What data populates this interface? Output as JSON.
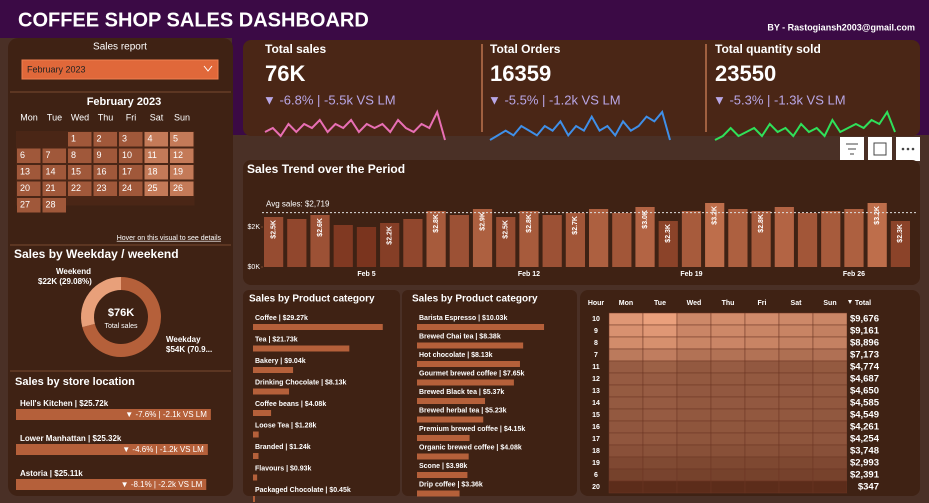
{
  "header": {
    "title": "COFFEE SHOP SALES DASHBOARD",
    "author": "BY - Rastogiansh2003@gmail.com"
  },
  "kpis": [
    {
      "title": "Total sales",
      "value": "76K",
      "change": "▼ -6.8% | -5.5k VS LM",
      "color": "#e86fb4",
      "trend": [
        4,
        5,
        3,
        6,
        4,
        6,
        5,
        7,
        4,
        6,
        5,
        7,
        4,
        6,
        5,
        6,
        4,
        7,
        5,
        4,
        6,
        5,
        9,
        2
      ]
    },
    {
      "title": "Total Orders",
      "value": "16359",
      "change": "▼ -5.5% | -1.2k VS LM",
      "color": "#3f8fe8",
      "trend": [
        3,
        4,
        5,
        4,
        6,
        5,
        4,
        6,
        5,
        7,
        4,
        6,
        5,
        8,
        5,
        6,
        4,
        7,
        5,
        6,
        8,
        7,
        9,
        3
      ]
    },
    {
      "title": "Total quantity sold",
      "value": "23550",
      "change": "▼ -5.3% | -1.3k VS LM",
      "color": "#2fe05a",
      "trend": [
        2,
        3,
        5,
        3,
        4,
        5,
        3,
        6,
        4,
        5,
        3,
        6,
        4,
        5,
        3,
        7,
        4,
        5,
        6,
        5,
        7,
        6,
        9,
        4
      ]
    }
  ],
  "sales_report": {
    "title": "Sales report",
    "dropdown": "February 2023",
    "month": "February 2023",
    "weekdays": [
      "Mon",
      "Tue",
      "Wed",
      "Thu",
      "Fri",
      "Sat",
      "Sun"
    ],
    "days": [
      null,
      null,
      1,
      2,
      3,
      4,
      5,
      6,
      7,
      8,
      9,
      10,
      11,
      12,
      13,
      14,
      15,
      16,
      17,
      18,
      19,
      20,
      21,
      22,
      23,
      24,
      25,
      26,
      27,
      28
    ],
    "hint": "Hover on this visual to see details"
  },
  "weekday": {
    "title": "Sales by Weekday / weekend",
    "center_value": "$76K",
    "center_label": "Total sales",
    "segments": [
      {
        "name": "Weekday",
        "label": "$54K (70.9...",
        "value": 70.92,
        "color": "#b5603a"
      },
      {
        "name": "Weekend",
        "label": "$22K (29.08%)",
        "value": 29.08,
        "color": "#e8a07a"
      }
    ]
  },
  "stores": {
    "title": "Sales by store location",
    "xlim": [
      0,
      26
    ],
    "items": [
      {
        "label": "Hell's Kitchen | $25.72k",
        "value": 25.72,
        "change": "▼ -7.6% | -2.1k VS LM"
      },
      {
        "label": "Lower Manhattan | $25.32k",
        "value": 25.32,
        "change": "▼ -4.6% | -1.2k VS LM"
      },
      {
        "label": "Astoria | $25.11k",
        "value": 25.11,
        "change": "▼ -8.1% | -2.2k VS LM"
      }
    ]
  },
  "trend": {
    "title": "Sales Trend over the Period",
    "avg_label": "Avg sales: $2,719",
    "avg": 2719,
    "ylim": [
      0,
      3600
    ],
    "yticks": [
      {
        "value": 0,
        "label": "$0K"
      },
      {
        "value": 2000,
        "label": "$2K"
      }
    ],
    "categories": [
      null,
      null,
      null,
      null,
      "Feb 5",
      null,
      null,
      null,
      null,
      null,
      null,
      "Feb 12",
      null,
      null,
      null,
      null,
      null,
      null,
      "Feb 19",
      null,
      null,
      null,
      null,
      null,
      null,
      "Feb 26",
      null,
      null
    ],
    "values": [
      2500,
      2400,
      2600,
      2100,
      2000,
      2200,
      2400,
      2800,
      2600,
      2900,
      2500,
      2800,
      2600,
      2700,
      2900,
      2700,
      3000,
      2300,
      2800,
      3200,
      2900,
      2800,
      3000,
      2700,
      2800,
      2900,
      3200,
      2300
    ],
    "value_labels": [
      "$2.5K",
      null,
      "$2.6K",
      null,
      null,
      "$2.2K",
      null,
      "$2.8K",
      null,
      "$2.9K",
      "$2.5K",
      "$2.8K",
      null,
      "$2.7K",
      null,
      null,
      "$3.0K",
      "$2.3K",
      null,
      "$3.2K",
      null,
      "$2.8K",
      null,
      null,
      null,
      null,
      "$3.2K",
      "$2.3K"
    ]
  },
  "categories": [
    {
      "title": "Sales by Product category",
      "xlim": [
        0,
        30
      ],
      "items": [
        {
          "label": "Coffee | $29.27k",
          "value": 29.27
        },
        {
          "label": "Tea | $21.73k",
          "value": 21.73
        },
        {
          "label": "Bakery | $9.04k",
          "value": 9.04
        },
        {
          "label": "Drinking Chocolate | $8.13k",
          "value": 8.13
        },
        {
          "label": "Coffee beans | $4.08k",
          "value": 4.08
        },
        {
          "label": "Loose Tea | $1.28k",
          "value": 1.28
        },
        {
          "label": "Branded | $1.24k",
          "value": 1.24
        },
        {
          "label": "Flavours | $0.93k",
          "value": 0.93
        },
        {
          "label": "Packaged Chocolate | $0.45k",
          "value": 0.45
        }
      ]
    },
    {
      "title": "Sales by Product category",
      "xlim": [
        0,
        10.5
      ],
      "items": [
        {
          "label": "Barista Espresso | $10.03k",
          "value": 10.03
        },
        {
          "label": "Brewed Chai tea | $8.38k",
          "value": 8.38
        },
        {
          "label": "Hot chocolate | $8.13k",
          "value": 8.13
        },
        {
          "label": "Gourmet brewed coffee | $7.65k",
          "value": 7.65
        },
        {
          "label": "Brewed Black tea | $5.37k",
          "value": 5.37
        },
        {
          "label": "Brewed herbal tea | $5.23k",
          "value": 5.23
        },
        {
          "label": "Premium brewed coffee | $4.15k",
          "value": 4.15
        },
        {
          "label": "Organic brewed coffee | $4.08k",
          "value": 4.08
        },
        {
          "label": "Scone | $3.98k",
          "value": 3.98
        },
        {
          "label": "Drip coffee | $3.36k",
          "value": 3.36
        }
      ]
    }
  ],
  "heatmap": {
    "headers": [
      "Hour",
      "Mon",
      "Tue",
      "Wed",
      "Thu",
      "Fri",
      "Sat",
      "Sun",
      "Total"
    ],
    "rows": [
      {
        "hour": 10,
        "cells": [
          1500,
          1620,
          1300,
          1350,
          1340,
          1300,
          1266
        ],
        "total_label": "$9,676",
        "total": 9676
      },
      {
        "hour": 9,
        "cells": [
          1420,
          1500,
          1260,
          1300,
          1250,
          1240,
          1191
        ],
        "total_label": "$9,161",
        "total": 9161
      },
      {
        "hour": 8,
        "cells": [
          1350,
          1400,
          1250,
          1260,
          1240,
          1200,
          1196
        ],
        "total_label": "$8,896",
        "total": 8896
      },
      {
        "hour": 7,
        "cells": [
          1100,
          1150,
          1000,
          1000,
          1000,
          950,
          973
        ],
        "total_label": "$7,173",
        "total": 7173
      },
      {
        "hour": 11,
        "cells": [
          700,
          760,
          660,
          700,
          650,
          640,
          664
        ],
        "total_label": "$4,774",
        "total": 4774
      },
      {
        "hour": 12,
        "cells": [
          690,
          700,
          660,
          660,
          660,
          650,
          667
        ],
        "total_label": "$4,687",
        "total": 4687
      },
      {
        "hour": 13,
        "cells": [
          680,
          700,
          650,
          650,
          660,
          650,
          660
        ],
        "total_label": "$4,650",
        "total": 4650
      },
      {
        "hour": 14,
        "cells": [
          670,
          690,
          640,
          650,
          650,
          640,
          645
        ],
        "total_label": "$4,585",
        "total": 4585
      },
      {
        "hour": 15,
        "cells": [
          660,
          690,
          640,
          640,
          640,
          640,
          639
        ],
        "total_label": "$4,549",
        "total": 4549
      },
      {
        "hour": 16,
        "cells": [
          620,
          640,
          600,
          610,
          600,
          600,
          591
        ],
        "total_label": "$4,261",
        "total": 4261
      },
      {
        "hour": 17,
        "cells": [
          620,
          630,
          600,
          600,
          600,
          600,
          604
        ],
        "total_label": "$4,254",
        "total": 4254
      },
      {
        "hour": 18,
        "cells": [
          540,
          560,
          530,
          530,
          530,
          520,
          538
        ],
        "total_label": "$3,748",
        "total": 3748
      },
      {
        "hour": 19,
        "cells": [
          430,
          450,
          420,
          420,
          420,
          420,
          433
        ],
        "total_label": "$2,993",
        "total": 2993
      },
      {
        "hour": 6,
        "cells": [
          340,
          360,
          340,
          340,
          340,
          330,
          341
        ],
        "total_label": "$2,391",
        "total": 2391
      },
      {
        "hour": 20,
        "cells": [
          50,
          50,
          50,
          50,
          50,
          50,
          47
        ],
        "total_label": "$347",
        "total": 347
      }
    ]
  }
}
